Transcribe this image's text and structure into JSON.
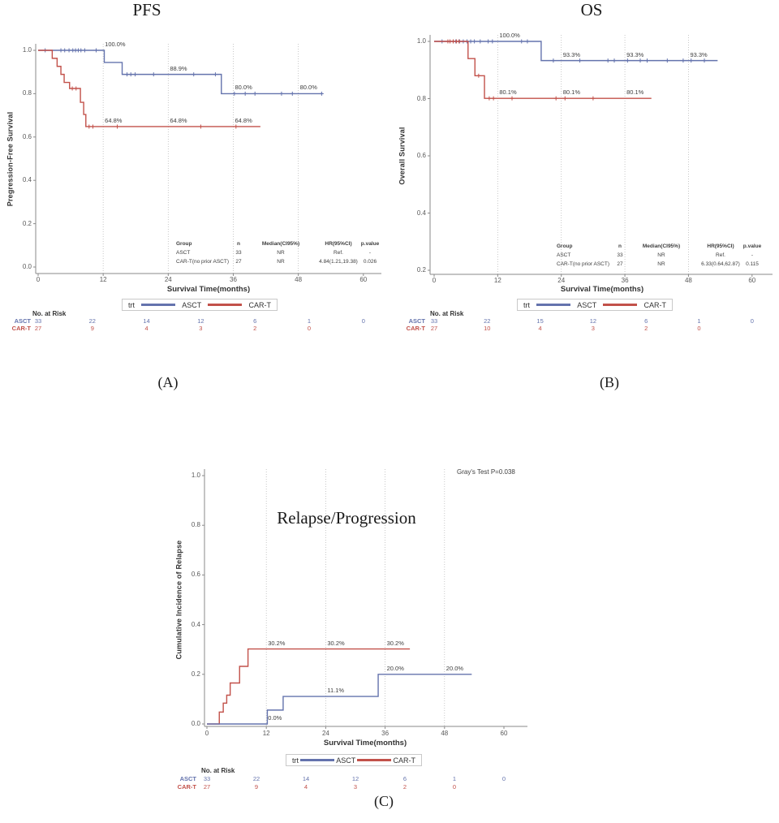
{
  "colors": {
    "asct": "#6473ad",
    "cart": "#c2514a",
    "grid": "#bbbbbb",
    "axis": "#8a8a8a",
    "tick_text": "#595959",
    "annotation_text": "#3d3d3d",
    "table_text": "#3d3d3d",
    "legend_border": "#c9c9c9"
  },
  "legend": {
    "title": "trt",
    "entries": [
      {
        "label": "ASCT",
        "color_key": "asct"
      },
      {
        "label": "CAR-T",
        "color_key": "cart"
      }
    ]
  },
  "chart_data": [
    {
      "id": "pfs",
      "type": "km_step",
      "title": "PFS",
      "caption": "(A)",
      "xlabel": "Survival Time(months)",
      "ylabel": "Pregression-Free Survival",
      "xticks": [
        0,
        12,
        24,
        36,
        48,
        60
      ],
      "ytick_labels": [
        "1.0",
        "0.8",
        "0.6",
        "0.4",
        "0.2",
        "0.0"
      ],
      "ylim": [
        0.0,
        1.0
      ],
      "xlim": [
        0,
        63
      ],
      "gridlines_x": [
        12,
        24,
        36,
        48
      ],
      "series": [
        {
          "name": "ASCT",
          "color_key": "asct",
          "steps": [
            [
              0,
              1.0
            ],
            [
              12.2,
              0.944
            ],
            [
              15.5,
              0.889
            ],
            [
              33.8,
              0.8
            ]
          ],
          "end_x": 52.5,
          "censors": [
            [
              1.3,
              1.0
            ],
            [
              4.2,
              1.0
            ],
            [
              4.9,
              1.0
            ],
            [
              5.7,
              1.0
            ],
            [
              6.4,
              1.0
            ],
            [
              6.9,
              1.0
            ],
            [
              7.4,
              1.0
            ],
            [
              7.9,
              1.0
            ],
            [
              8.6,
              1.0
            ],
            [
              10.7,
              1.0
            ],
            [
              16.4,
              0.889
            ],
            [
              17.1,
              0.889
            ],
            [
              17.9,
              0.889
            ],
            [
              21.3,
              0.889
            ],
            [
              28.7,
              0.889
            ],
            [
              32.7,
              0.889
            ],
            [
              36.2,
              0.8
            ],
            [
              38.2,
              0.8
            ],
            [
              40.0,
              0.8
            ],
            [
              44.9,
              0.8
            ],
            [
              46.9,
              0.8
            ],
            [
              52.3,
              0.8
            ]
          ]
        },
        {
          "name": "CAR-T",
          "color_key": "cart",
          "steps": [
            [
              0,
              1.0
            ],
            [
              2.6,
              0.963
            ],
            [
              3.5,
              0.926
            ],
            [
              4.2,
              0.889
            ],
            [
              4.8,
              0.852
            ],
            [
              5.8,
              0.824
            ],
            [
              7.8,
              0.76
            ],
            [
              8.4,
              0.704
            ],
            [
              8.8,
              0.648
            ]
          ],
          "end_x": 41,
          "censors": [
            [
              6.3,
              0.824
            ],
            [
              7.0,
              0.824
            ],
            [
              9.4,
              0.648
            ],
            [
              10.1,
              0.648
            ],
            [
              14.6,
              0.648
            ],
            [
              30.0,
              0.648
            ],
            [
              36.5,
              0.648
            ]
          ]
        }
      ],
      "annotations": [
        {
          "x": 12,
          "y": 1.0,
          "text": "100.0%"
        },
        {
          "x": 24,
          "y": 0.889,
          "text": "88.9%"
        },
        {
          "x": 36,
          "y": 0.8,
          "text": "80.0%"
        },
        {
          "x": 48,
          "y": 0.8,
          "text": "80.0%"
        },
        {
          "x": 12,
          "y": 0.648,
          "text": "64.8%"
        },
        {
          "x": 24,
          "y": 0.648,
          "text": "64.8%"
        },
        {
          "x": 36,
          "y": 0.648,
          "text": "64.8%"
        }
      ],
      "stats_table": {
        "headers": [
          "Group",
          "n",
          "Median(CI95%)",
          "HR(95%CI)",
          "p.value"
        ],
        "rows": [
          [
            "ASCT",
            "33",
            "NR",
            "Ref.",
            "-"
          ],
          [
            "CAR-T(no prior ASCT)",
            "27",
            "NR",
            "4.84(1.21,19.38)",
            "0.026"
          ]
        ]
      },
      "risk_table": {
        "title": "No. at Risk",
        "months": [
          0,
          10,
          20,
          30,
          40,
          50,
          60
        ],
        "rows": [
          {
            "label": "ASCT",
            "color_key": "asct",
            "values": [
              "33",
              "22",
              "14",
              "12",
              "6",
              "1",
              "0"
            ]
          },
          {
            "label": "CAR-T",
            "color_key": "cart",
            "values": [
              "27",
              "9",
              "4",
              "3",
              "2",
              "0"
            ]
          }
        ]
      }
    },
    {
      "id": "os",
      "type": "km_step",
      "title": "OS",
      "caption": "(B)",
      "xlabel": "Survival Time(months)",
      "ylabel": "Overall Survival",
      "xticks": [
        0,
        12,
        24,
        36,
        48,
        60
      ],
      "ytick_labels": [
        "1.0",
        "0.8",
        "0.6",
        "0.4",
        "0.2"
      ],
      "ylim": [
        0.2,
        1.0
      ],
      "xlim": [
        0,
        63
      ],
      "gridlines_x": [
        12,
        24,
        36,
        48
      ],
      "series": [
        {
          "name": "ASCT",
          "color_key": "asct",
          "steps": [
            [
              0,
              1.0
            ],
            [
              20.2,
              0.933
            ]
          ],
          "end_x": 53.5,
          "censors": [
            [
              1.5,
              1.0
            ],
            [
              4.1,
              1.0
            ],
            [
              4.8,
              1.0
            ],
            [
              5.5,
              1.0
            ],
            [
              6.2,
              1.0
            ],
            [
              6.9,
              1.0
            ],
            [
              7.6,
              1.0
            ],
            [
              8.7,
              1.0
            ],
            [
              10.2,
              1.0
            ],
            [
              11.0,
              1.0
            ],
            [
              16.5,
              1.0
            ],
            [
              17.6,
              1.0
            ],
            [
              22.5,
              0.933
            ],
            [
              27.5,
              0.933
            ],
            [
              32.8,
              0.933
            ],
            [
              34.0,
              0.933
            ],
            [
              36.5,
              0.933
            ],
            [
              38.9,
              0.933
            ],
            [
              40.2,
              0.933
            ],
            [
              44.0,
              0.933
            ],
            [
              47.0,
              0.933
            ],
            [
              48.5,
              0.933
            ],
            [
              51.0,
              0.933
            ]
          ]
        },
        {
          "name": "CAR-T",
          "color_key": "cart",
          "steps": [
            [
              0,
              1.0
            ],
            [
              6.4,
              0.94
            ],
            [
              7.7,
              0.88
            ],
            [
              9.5,
              0.801
            ]
          ],
          "end_x": 41,
          "censors": [
            [
              2.6,
              1.0
            ],
            [
              3.0,
              1.0
            ],
            [
              3.6,
              1.0
            ],
            [
              4.2,
              1.0
            ],
            [
              4.7,
              1.0
            ],
            [
              8.4,
              0.88
            ],
            [
              10.4,
              0.801
            ],
            [
              11.2,
              0.801
            ],
            [
              14.7,
              0.801
            ],
            [
              23.0,
              0.801
            ],
            [
              24.7,
              0.801
            ],
            [
              30.0,
              0.801
            ]
          ]
        }
      ],
      "annotations": [
        {
          "x": 12,
          "y": 1.0,
          "text": "100.0%"
        },
        {
          "x": 24,
          "y": 0.933,
          "text": "93.3%"
        },
        {
          "x": 36,
          "y": 0.933,
          "text": "93.3%"
        },
        {
          "x": 48,
          "y": 0.933,
          "text": "93.3%"
        },
        {
          "x": 12,
          "y": 0.801,
          "text": "80.1%"
        },
        {
          "x": 24,
          "y": 0.801,
          "text": "80.1%"
        },
        {
          "x": 36,
          "y": 0.801,
          "text": "80.1%"
        }
      ],
      "stats_table": {
        "headers": [
          "Group",
          "n",
          "Median(CI95%)",
          "HR(95%CI)",
          "p.value"
        ],
        "rows": [
          [
            "ASCT",
            "33",
            "NR",
            "Ref.",
            "-"
          ],
          [
            "CAR-T(no prior ASCT)",
            "27",
            "NR",
            "6.33(0.64,62.87)",
            "0.115"
          ]
        ]
      },
      "risk_table": {
        "title": "No. at Risk",
        "months": [
          0,
          10,
          20,
          30,
          40,
          50,
          60
        ],
        "rows": [
          {
            "label": "ASCT",
            "color_key": "asct",
            "values": [
              "33",
              "22",
              "15",
              "12",
              "6",
              "1",
              "0"
            ]
          },
          {
            "label": "CAR-T",
            "color_key": "cart",
            "values": [
              "27",
              "10",
              "4",
              "3",
              "2",
              "0"
            ]
          }
        ]
      }
    },
    {
      "id": "relapse",
      "type": "cumulative_incidence_step",
      "title": "",
      "inner_title": "Relapse/Progression",
      "note": "Gray's Test P=0.038",
      "caption": "(C)",
      "xlabel": "Survival Time(months)",
      "ylabel": "Cumulative Incidence of Relapse",
      "xticks": [
        0,
        12,
        24,
        36,
        48,
        60
      ],
      "ytick_labels": [
        "1.0",
        "0.8",
        "0.6",
        "0.4",
        "0.2",
        "0.0"
      ],
      "ylim": [
        0.0,
        1.0
      ],
      "xlim": [
        0,
        65
      ],
      "gridlines_x": [
        12,
        24,
        36,
        48
      ],
      "series": [
        {
          "name": "CAR-T",
          "color_key": "cart",
          "steps": [
            [
              0,
              0.0
            ],
            [
              2.5,
              0.048
            ],
            [
              3.3,
              0.084
            ],
            [
              4.0,
              0.116
            ],
            [
              4.7,
              0.165
            ],
            [
              6.6,
              0.232
            ],
            [
              8.3,
              0.302
            ]
          ],
          "end_x": 41,
          "censors": []
        },
        {
          "name": "ASCT",
          "color_key": "asct",
          "steps": [
            [
              0,
              0.0
            ],
            [
              12.2,
              0.056
            ],
            [
              15.4,
              0.111
            ],
            [
              34.6,
              0.2
            ]
          ],
          "end_x": 53.5,
          "censors": []
        }
      ],
      "annotations": [
        {
          "x": 12,
          "y": 0.302,
          "text": "30.2%"
        },
        {
          "x": 24,
          "y": 0.302,
          "text": "30.2%"
        },
        {
          "x": 36,
          "y": 0.302,
          "text": "30.2%"
        },
        {
          "x": 12,
          "y": 0.0,
          "text": "0.0%"
        },
        {
          "x": 24,
          "y": 0.111,
          "text": "11.1%"
        },
        {
          "x": 36,
          "y": 0.2,
          "text": "20.0%"
        },
        {
          "x": 48,
          "y": 0.2,
          "text": "20.0%"
        }
      ],
      "risk_table": {
        "title": "No. at Risk",
        "months": [
          0,
          10,
          20,
          30,
          40,
          50,
          60
        ],
        "rows": [
          {
            "label": "ASCT",
            "color_key": "asct",
            "values": [
              "33",
              "22",
              "14",
              "12",
              "6",
              "1",
              "0"
            ]
          },
          {
            "label": "CAR-T",
            "color_key": "cart",
            "values": [
              "27",
              "9",
              "4",
              "3",
              "2",
              "0"
            ]
          }
        ]
      }
    }
  ]
}
